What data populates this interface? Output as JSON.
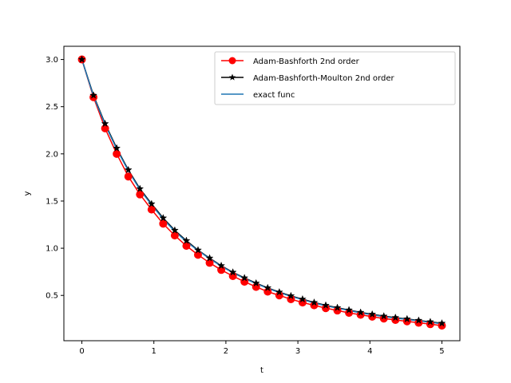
{
  "chart_data": {
    "type": "line",
    "title": "",
    "xlabel": "t",
    "ylabel": "y",
    "xlim": [
      -0.25,
      5.25
    ],
    "ylim": [
      0.02,
      3.14
    ],
    "xticks": [
      0,
      1,
      2,
      3,
      4,
      5
    ],
    "xtick_labels": [
      "0",
      "1",
      "2",
      "3",
      "4",
      "5"
    ],
    "yticks": [
      0.5,
      1.0,
      1.5,
      2.0,
      2.5,
      3.0
    ],
    "ytick_labels": [
      "0.5",
      "1.0",
      "1.5",
      "2.0",
      "2.5",
      "3.0"
    ],
    "grid": false,
    "legend_position": "upper-right",
    "series": [
      {
        "name": "Adam-Bashforth 2nd order",
        "color": "#ff0000",
        "marker": "circle",
        "x": [
          0.0,
          0.1613,
          0.3226,
          0.4839,
          0.6452,
          0.8065,
          0.9677,
          1.129,
          1.2903,
          1.4516,
          1.6129,
          1.7742,
          1.9355,
          2.0968,
          2.2581,
          2.4194,
          2.5806,
          2.7419,
          2.9032,
          3.0645,
          3.2258,
          3.3871,
          3.5484,
          3.7097,
          3.871,
          4.0323,
          4.1935,
          4.3548,
          4.5161,
          4.6774,
          4.8387,
          5.0
        ],
        "y": [
          3.0,
          2.6,
          2.27,
          2.0,
          1.76,
          1.57,
          1.41,
          1.26,
          1.135,
          1.025,
          0.93,
          0.845,
          0.77,
          0.705,
          0.645,
          0.59,
          0.54,
          0.5,
          0.46,
          0.425,
          0.395,
          0.365,
          0.34,
          0.315,
          0.295,
          0.275,
          0.255,
          0.24,
          0.225,
          0.21,
          0.195,
          0.18
        ]
      },
      {
        "name": "Adam-Bashforth-Moulton 2nd order",
        "color": "#000000",
        "marker": "star",
        "x": [
          0.0,
          0.1613,
          0.3226,
          0.4839,
          0.6452,
          0.8065,
          0.9677,
          1.129,
          1.2903,
          1.4516,
          1.6129,
          1.7742,
          1.9355,
          2.0968,
          2.2581,
          2.4194,
          2.5806,
          2.7419,
          2.9032,
          3.0645,
          3.2258,
          3.3871,
          3.5484,
          3.7097,
          3.871,
          4.0323,
          4.1935,
          4.3548,
          4.5161,
          4.6774,
          4.8387,
          5.0
        ],
        "y": [
          3.0,
          2.62,
          2.32,
          2.06,
          1.83,
          1.63,
          1.47,
          1.32,
          1.19,
          1.08,
          0.98,
          0.895,
          0.815,
          0.745,
          0.685,
          0.63,
          0.58,
          0.535,
          0.495,
          0.46,
          0.425,
          0.395,
          0.37,
          0.345,
          0.32,
          0.3,
          0.28,
          0.265,
          0.25,
          0.235,
          0.22,
          0.205
        ]
      },
      {
        "name": "exact func",
        "color": "#1f77b4",
        "marker": "none",
        "x": [
          0.0,
          0.1613,
          0.3226,
          0.4839,
          0.6452,
          0.8065,
          0.9677,
          1.129,
          1.2903,
          1.4516,
          1.6129,
          1.7742,
          1.9355,
          2.0968,
          2.2581,
          2.4194,
          2.5806,
          2.7419,
          2.9032,
          3.0645,
          3.2258,
          3.3871,
          3.5484,
          3.7097,
          3.871,
          4.0323,
          4.1935,
          4.3548,
          4.5161,
          4.6774,
          4.8387,
          5.0
        ],
        "y": [
          3.0,
          2.61,
          2.31,
          2.05,
          1.82,
          1.62,
          1.46,
          1.31,
          1.18,
          1.07,
          0.975,
          0.89,
          0.81,
          0.74,
          0.68,
          0.625,
          0.575,
          0.53,
          0.49,
          0.455,
          0.42,
          0.39,
          0.365,
          0.34,
          0.315,
          0.295,
          0.275,
          0.26,
          0.245,
          0.23,
          0.215,
          0.2
        ]
      }
    ]
  }
}
